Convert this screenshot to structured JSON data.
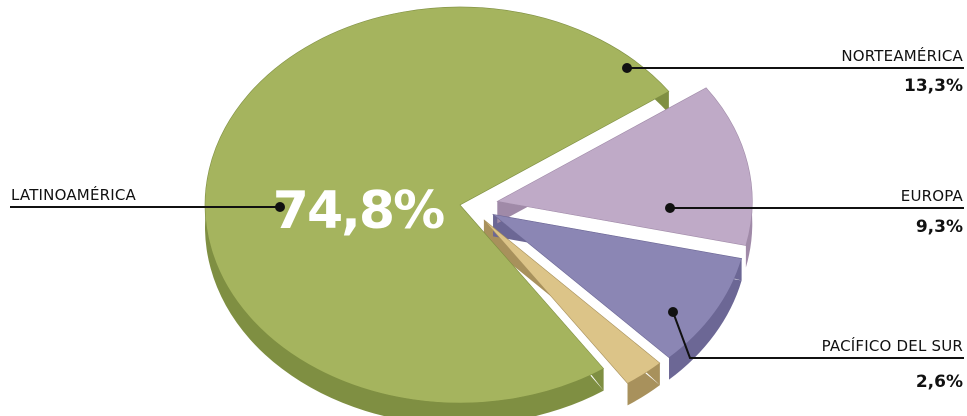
{
  "chart_data": {
    "type": "pie",
    "slices": [
      {
        "label": "LATINOAMÉRICA",
        "value_label": "74,8%",
        "value": 74.8,
        "color": "#a5b45e",
        "side": "#7f8f42"
      },
      {
        "label": "NORTEAMÉRICA",
        "value_label": "13,3%",
        "value": 13.3,
        "color": "#bfaac7",
        "side": "#a08aa8"
      },
      {
        "label": "EUROPA",
        "value_label": "9,3%",
        "value": 9.3,
        "color": "#8b86b4",
        "side": "#6c6795"
      },
      {
        "label": "PACÍFICO DEL SUR",
        "value_label": "2,6%",
        "value": 2.6,
        "color": "#dcc488",
        "side": "#a8915c"
      }
    ],
    "legend": "none"
  }
}
